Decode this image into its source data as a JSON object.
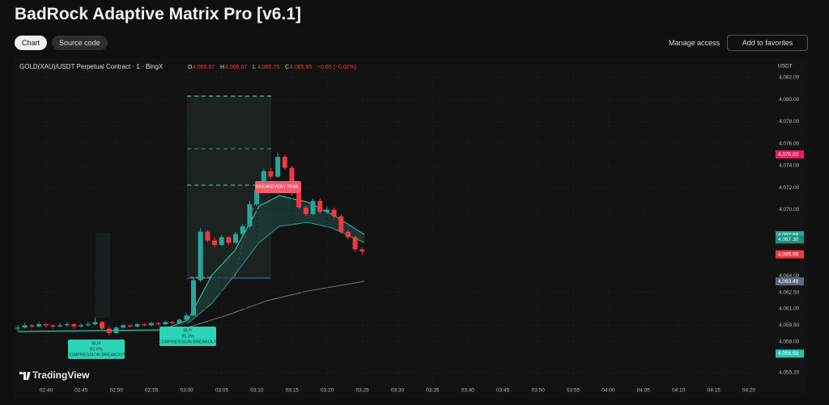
{
  "header": {
    "title": "BadRock Adaptive Matrix Pro [v6.1]",
    "tabs": [
      "Chart",
      "Source code"
    ],
    "manage_access": "Manage access",
    "add_favorites": "Add to favorites"
  },
  "chart": {
    "symbol": "GOLD(XAU)/USDT Perpetual Contract · 1 · BingX",
    "ohlc_legend": [
      {
        "label": "O",
        "value": "4,066.67"
      },
      {
        "label": "H",
        "value": "4,066.67"
      },
      {
        "label": "L",
        "value": "4,065.75"
      },
      {
        "label": "C",
        "value": "4,065.95"
      }
    ],
    "change": "−0.65 (−0.02%)",
    "currency": "USDT",
    "logo": "TradingView",
    "yticks": [
      {
        "value": 4082,
        "label": "4,082.00"
      },
      {
        "value": 4080,
        "label": "4,080.00"
      },
      {
        "value": 4078,
        "label": "4,078.00"
      },
      {
        "value": 4076,
        "label": "4,076.00"
      },
      {
        "value": 4074,
        "label": "4,074.00"
      },
      {
        "value": 4072,
        "label": "4,072.00"
      },
      {
        "value": 4070,
        "label": "4,070.00"
      },
      {
        "value": 4064,
        "label": "4,064.00"
      },
      {
        "value": 4062.5,
        "label": "4,062.50"
      },
      {
        "value": 4061,
        "label": "4,061.00"
      },
      {
        "value": 4059.5,
        "label": "4,059.50"
      },
      {
        "value": 4058,
        "label": "4,058.00"
      },
      {
        "value": 4055.2,
        "label": "4,055.20"
      }
    ],
    "price_tags": [
      {
        "value": 4075.02,
        "label": "4,075.02",
        "color": "#e91e63"
      },
      {
        "value": 4067.68,
        "label": "4,067.68",
        "color": "#22ab94"
      },
      {
        "value": 4067.3,
        "label": "4,067.30",
        "color": "#1e8f7c"
      },
      {
        "value": 4065.95,
        "label": "4,065.95",
        "color": "#f23645"
      },
      {
        "value": 4063.49,
        "label": "4,063.49",
        "color": "#5d6a7e"
      },
      {
        "value": 4056.93,
        "label": "4,056.93",
        "color": "#26c6b0"
      }
    ],
    "times": [
      "02:40",
      "02:45",
      "02:50",
      "02:55",
      "03:00",
      "03:05",
      "03:10",
      "03:15",
      "03:20",
      "03:25",
      "03:30",
      "03:35",
      "03:40",
      "03:45",
      "03:50",
      "03:55",
      "04:00",
      "04:05",
      "04:10",
      "04:15",
      "04:20"
    ],
    "up_color": "#26a69a",
    "down_color": "#f23645",
    "candles": [
      [
        4059.2,
        4059.5,
        4059.0,
        4059.3
      ],
      [
        4059.3,
        4059.7,
        4059.2,
        4059.5
      ],
      [
        4059.5,
        4059.6,
        4059.2,
        4059.4
      ],
      [
        4059.4,
        4059.8,
        4059.3,
        4059.6
      ],
      [
        4059.6,
        4059.7,
        4059.3,
        4059.5
      ],
      [
        4059.5,
        4059.6,
        4059.2,
        4059.4
      ],
      [
        4059.4,
        4059.7,
        4059.3,
        4059.5
      ],
      [
        4059.5,
        4059.8,
        4059.4,
        4059.6
      ],
      [
        4059.6,
        4059.7,
        4059.2,
        4059.4
      ],
      [
        4059.4,
        4059.7,
        4059.3,
        4059.5
      ],
      [
        4059.5,
        4059.8,
        4059.4,
        4059.6
      ],
      [
        4059.6,
        4060.2,
        4059.5,
        4059.8
      ],
      [
        4059.8,
        4059.9,
        4059.1,
        4059.2
      ],
      [
        4059.2,
        4059.4,
        4058.6,
        4058.8
      ],
      [
        4058.8,
        4059.4,
        4058.7,
        4059.3
      ],
      [
        4059.3,
        4059.6,
        4059.2,
        4059.5
      ],
      [
        4059.5,
        4059.6,
        4059.3,
        4059.4
      ],
      [
        4059.4,
        4059.7,
        4059.3,
        4059.6
      ],
      [
        4059.6,
        4059.7,
        4059.4,
        4059.5
      ],
      [
        4059.5,
        4059.8,
        4059.4,
        4059.7
      ],
      [
        4059.7,
        4059.8,
        4059.5,
        4059.6
      ],
      [
        4059.6,
        4059.9,
        4059.5,
        4059.8
      ],
      [
        4059.8,
        4059.9,
        4059.6,
        4059.7
      ],
      [
        4059.7,
        4060.1,
        4059.6,
        4060.0
      ],
      [
        4060.0,
        4060.6,
        4059.8,
        4060.4
      ],
      [
        4060.4,
        4063.8,
        4060.3,
        4063.6
      ],
      [
        4063.6,
        4068.3,
        4063.4,
        4068.0
      ],
      [
        4068.0,
        4068.2,
        4067.0,
        4067.2
      ],
      [
        4067.2,
        4067.5,
        4066.6,
        4066.8
      ],
      [
        4066.8,
        4067.7,
        4066.7,
        4067.5
      ],
      [
        4067.5,
        4067.6,
        4066.8,
        4067.0
      ],
      [
        4067.0,
        4068.0,
        4066.9,
        4067.8
      ],
      [
        4067.8,
        4068.7,
        4067.6,
        4068.5
      ],
      [
        4068.5,
        4070.8,
        4068.3,
        4070.5
      ],
      [
        4070.5,
        4072.0,
        4070.3,
        4071.8
      ],
      [
        4071.8,
        4073.7,
        4071.6,
        4073.5
      ],
      [
        4073.5,
        4073.8,
        4072.8,
        4073.0
      ],
      [
        4073.0,
        4075.2,
        4072.9,
        4074.8
      ],
      [
        4074.8,
        4075.0,
        4073.6,
        4073.8
      ],
      [
        4073.8,
        4074.0,
        4071.3,
        4071.5
      ],
      [
        4071.5,
        4071.7,
        4070.0,
        4070.2
      ],
      [
        4070.2,
        4070.4,
        4069.4,
        4069.6
      ],
      [
        4069.6,
        4071.0,
        4069.5,
        4070.8
      ],
      [
        4070.8,
        4071.0,
        4069.6,
        4069.8
      ],
      [
        4069.8,
        4070.3,
        4069.6,
        4070.0
      ],
      [
        4070.0,
        4070.2,
        4069.2,
        4069.4
      ],
      [
        4069.4,
        4069.6,
        4067.8,
        4068.0
      ],
      [
        4068.0,
        4068.2,
        4067.3,
        4067.5
      ],
      [
        4067.5,
        4067.7,
        4066.2,
        4066.4
      ],
      [
        4066.4,
        4066.6,
        4065.9,
        4066.2
      ]
    ],
    "signals": [
      {
        "side": "BUY",
        "confidence": "81.8%",
        "kind": "COMPRESSION BREAKOUT"
      },
      {
        "side": "BUY",
        "confidence": "95.3%",
        "kind": "COMPRESSION BREAKOUT"
      }
    ],
    "trail_label": "BREAKEVEN / TRAIL"
  }
}
